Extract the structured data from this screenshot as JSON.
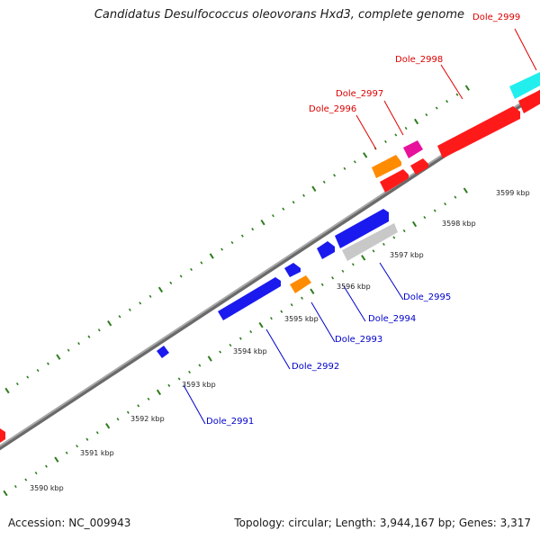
{
  "title": "Candidatus Desulfococcus oleovorans Hxd3, complete genome",
  "footer": {
    "accession": "Accession: NC_009943",
    "summary": "Topology: circular; Length: 3,944,167 bp; Genes: 3,317"
  },
  "colors": {
    "backbone": "#8c8c8c",
    "tick": "#2e7d1e",
    "label_forward": "#dd0000",
    "label_reverse": "#0000cc",
    "red": "#ff1a1a",
    "blue": "#1a1aee",
    "orange": "#ff8c00",
    "magenta": "#e8119c",
    "gray": "#c8c8c8",
    "cyan": "#22eeee"
  },
  "scale": {
    "ticks": [
      "3590 kbp",
      "3591 kbp",
      "3592 kbp",
      "3593 kbp",
      "3594 kbp",
      "3595 kbp",
      "3596 kbp",
      "3597 kbp",
      "3598 kbp",
      "3599 kbp"
    ]
  },
  "genes": {
    "forward": [
      "Dole_2996",
      "Dole_2997",
      "Dole_2998",
      "Dole_2999"
    ],
    "reverse": [
      "Dole_2991",
      "Dole_2992",
      "Dole_2993",
      "Dole_2994",
      "Dole_2995"
    ]
  }
}
